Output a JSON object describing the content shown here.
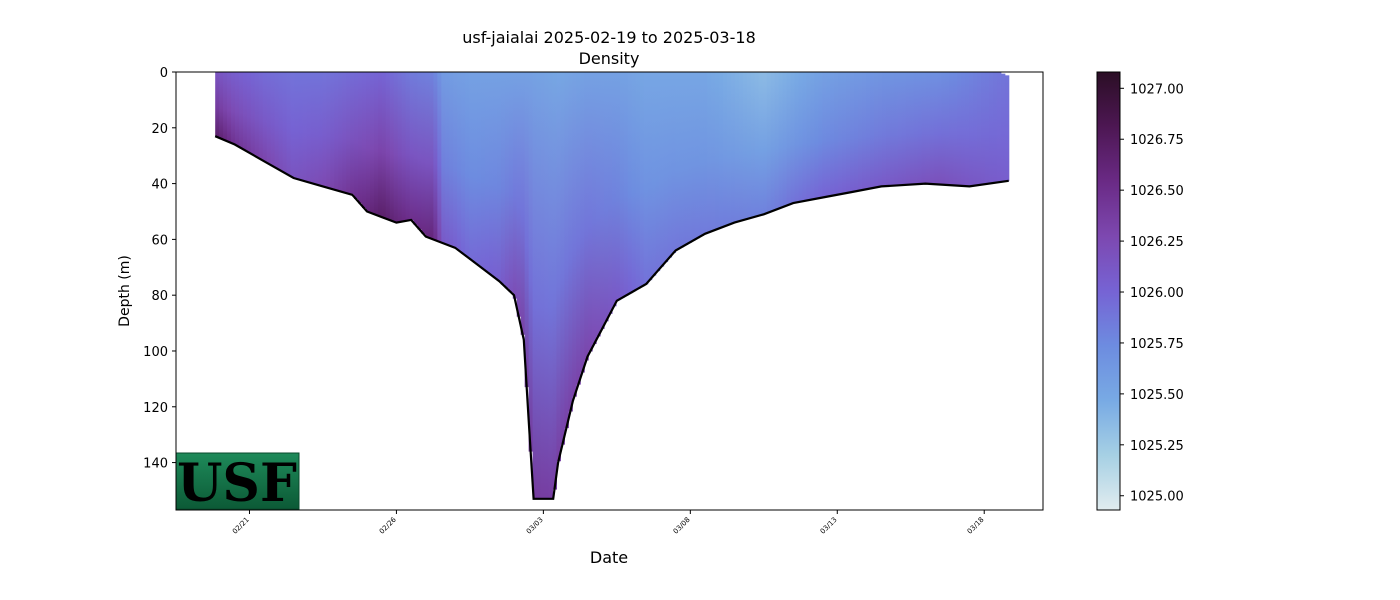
{
  "chart_data": {
    "type": "heatmap",
    "title": "usf-jaialai 2025-02-19 to 2025-03-18",
    "subtitle": "Density",
    "xlabel": "Date",
    "ylabel": "Depth (m)",
    "x_tick_labels": [
      "02/21",
      "02/26",
      "03/03",
      "03/08",
      "03/13",
      "03/18"
    ],
    "x_tick_dates": [
      "2025-02-21",
      "2025-02-26",
      "2025-03-03",
      "2025-03-08",
      "2025-03-13",
      "2025-03-18"
    ],
    "xlim": [
      "2025-02-18T12:00",
      "2025-03-20T00:00"
    ],
    "y_ticks": [
      0,
      20,
      40,
      60,
      80,
      100,
      120,
      140
    ],
    "ylim": [
      157,
      0
    ],
    "y_inverted": true,
    "colorbar": {
      "tick_values": [
        1025.0,
        1025.25,
        1025.5,
        1025.75,
        1026.0,
        1026.25,
        1026.5,
        1026.75,
        1027.0
      ],
      "tick_labels": [
        "1025.00",
        "1025.25",
        "1025.50",
        "1025.75",
        "1026.00",
        "1026.25",
        "1026.50",
        "1026.75",
        "1027.00"
      ],
      "range": [
        1024.93,
        1027.08
      ],
      "colormap": [
        "#e1ecef",
        "#a6d0e4",
        "#78aae4",
        "#6d8ce0",
        "#7663d4",
        "#7d48b0",
        "#6a2a85",
        "#4d1753",
        "#2b0e25"
      ]
    },
    "profile_bottom": [
      {
        "date": "2025-02-19T20:00",
        "depth": 23
      },
      {
        "date": "2025-02-20T12:00",
        "depth": 26
      },
      {
        "date": "2025-02-21T12:00",
        "depth": 32
      },
      {
        "date": "2025-02-22T12:00",
        "depth": 38
      },
      {
        "date": "2025-02-23T12:00",
        "depth": 41
      },
      {
        "date": "2025-02-24T12:00",
        "depth": 44
      },
      {
        "date": "2025-02-25T00:00",
        "depth": 50
      },
      {
        "date": "2025-02-26T00:00",
        "depth": 54
      },
      {
        "date": "2025-02-26T12:00",
        "depth": 53
      },
      {
        "date": "2025-02-27T00:00",
        "depth": 59
      },
      {
        "date": "2025-02-28T00:00",
        "depth": 63
      },
      {
        "date": "2025-02-28T12:00",
        "depth": 67
      },
      {
        "date": "2025-03-01T12:00",
        "depth": 75
      },
      {
        "date": "2025-03-02T00:00",
        "depth": 80
      },
      {
        "date": "2025-03-02T08:00",
        "depth": 96
      },
      {
        "date": "2025-03-02T12:00",
        "depth": 125
      },
      {
        "date": "2025-03-02T16:00",
        "depth": 153
      },
      {
        "date": "2025-03-03T08:00",
        "depth": 153
      },
      {
        "date": "2025-03-03T12:00",
        "depth": 140
      },
      {
        "date": "2025-03-04T00:00",
        "depth": 118
      },
      {
        "date": "2025-03-04T12:00",
        "depth": 102
      },
      {
        "date": "2025-03-05T00:00",
        "depth": 92
      },
      {
        "date": "2025-03-05T12:00",
        "depth": 82
      },
      {
        "date": "2025-03-06T12:00",
        "depth": 76
      },
      {
        "date": "2025-03-07T12:00",
        "depth": 64
      },
      {
        "date": "2025-03-08T12:00",
        "depth": 58
      },
      {
        "date": "2025-03-09T12:00",
        "depth": 54
      },
      {
        "date": "2025-03-10T12:00",
        "depth": 51
      },
      {
        "date": "2025-03-11T12:00",
        "depth": 47
      },
      {
        "date": "2025-03-12T12:00",
        "depth": 45
      },
      {
        "date": "2025-03-13T12:00",
        "depth": 43
      },
      {
        "date": "2025-03-14T12:00",
        "depth": 41
      },
      {
        "date": "2025-03-16T00:00",
        "depth": 40
      },
      {
        "date": "2025-03-17T12:00",
        "depth": 41
      },
      {
        "date": "2025-03-18T20:00",
        "depth": 39
      }
    ],
    "profile_top": [
      {
        "date": "2025-02-19T20:00",
        "depth": 0
      },
      {
        "date": "2025-03-18T12:00",
        "depth": 0
      },
      {
        "date": "2025-03-18T20:00",
        "depth": 1.5
      }
    ],
    "density_columns": [
      {
        "date": "2025-02-19T20:00",
        "surface": 1026.15,
        "bottom": 1026.7
      },
      {
        "date": "2025-02-20T12:00",
        "surface": 1026.05,
        "bottom": 1026.45
      },
      {
        "date": "2025-02-21T12:00",
        "surface": 1025.95,
        "bottom": 1026.3
      },
      {
        "date": "2025-02-22T12:00",
        "surface": 1025.9,
        "bottom": 1026.15
      },
      {
        "date": "2025-02-23T12:00",
        "surface": 1025.9,
        "bottom": 1026.25
      },
      {
        "date": "2025-02-24T12:00",
        "surface": 1025.95,
        "bottom": 1026.45
      },
      {
        "date": "2025-02-25T12:00",
        "surface": 1026.0,
        "bottom": 1026.7
      },
      {
        "date": "2025-02-26T12:00",
        "surface": 1025.85,
        "bottom": 1026.5
      },
      {
        "date": "2025-02-27T06:00",
        "surface": 1025.8,
        "bottom": 1026.6
      },
      {
        "date": "2025-02-27T14:00",
        "surface": 1025.6,
        "bottom": 1026.1
      },
      {
        "date": "2025-02-28T12:00",
        "surface": 1025.55,
        "bottom": 1025.95
      },
      {
        "date": "2025-03-01T12:00",
        "surface": 1025.55,
        "bottom": 1026.05
      },
      {
        "date": "2025-03-02T12:00",
        "surface": 1025.55,
        "bottom": 1026.4
      },
      {
        "date": "2025-03-03T12:00",
        "surface": 1025.5,
        "bottom": 1026.35
      },
      {
        "date": "2025-03-04T12:00",
        "surface": 1025.55,
        "bottom": 1026.3
      },
      {
        "date": "2025-03-05T12:00",
        "surface": 1025.55,
        "bottom": 1026.1
      },
      {
        "date": "2025-03-06T12:00",
        "surface": 1025.5,
        "bottom": 1025.9
      },
      {
        "date": "2025-03-08T12:00",
        "surface": 1025.5,
        "bottom": 1025.85
      },
      {
        "date": "2025-03-10T12:00",
        "surface": 1025.35,
        "bottom": 1025.8
      },
      {
        "date": "2025-03-12T12:00",
        "surface": 1025.55,
        "bottom": 1026.0
      },
      {
        "date": "2025-03-14T12:00",
        "surface": 1025.65,
        "bottom": 1026.1
      },
      {
        "date": "2025-03-16T12:00",
        "surface": 1025.7,
        "bottom": 1026.2
      },
      {
        "date": "2025-03-18T20:00",
        "surface": 1025.9,
        "bottom": 1026.05
      }
    ],
    "grid": false
  },
  "logo": {
    "text": "USF",
    "colors": {
      "green_top": "#1e8a5a",
      "green_bottom": "#0c5a36",
      "letter": "#f3eeb8"
    }
  }
}
